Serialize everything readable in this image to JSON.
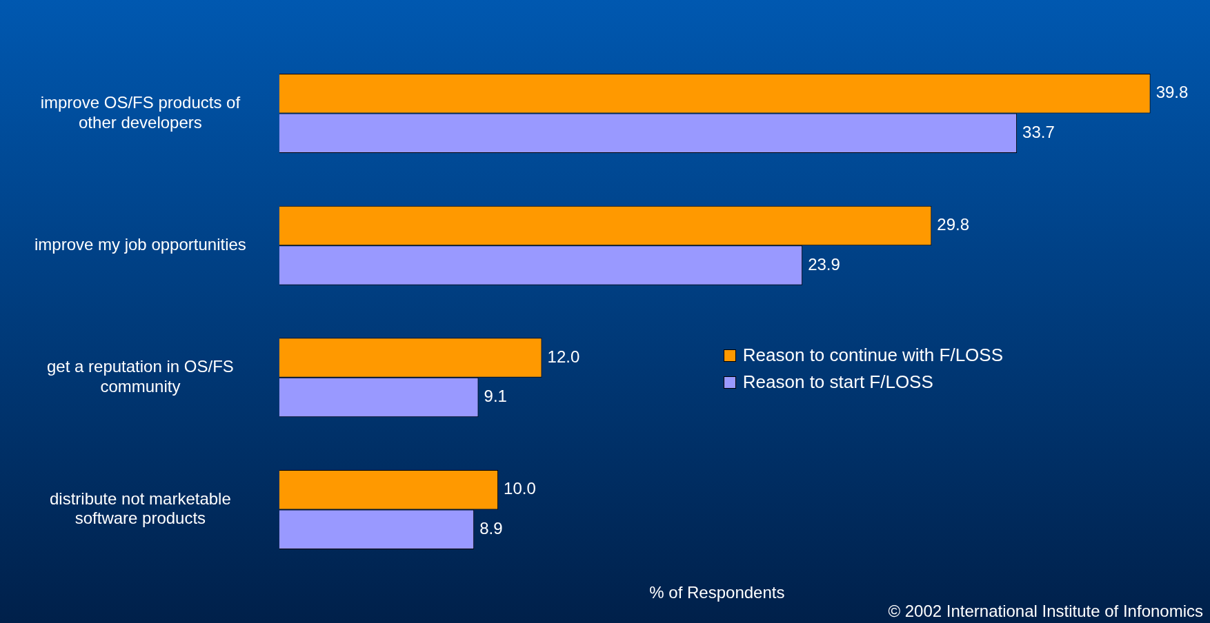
{
  "chart_data": {
    "type": "bar",
    "orientation": "horizontal",
    "categories": [
      "improve OS/FS products of other developers",
      "improve my job opportunities",
      "get a reputation in OS/FS community",
      "distribute not marketable software products"
    ],
    "series": [
      {
        "name": "Reason to continue with F/LOSS",
        "color": "#ff9900",
        "values": [
          39.8,
          29.8,
          12.0,
          10.0
        ],
        "value_labels": [
          "39.8",
          "29.8",
          "12.0",
          "10.0"
        ]
      },
      {
        "name": "Reason to start F/LOSS",
        "color": "#9999ff",
        "values": [
          33.7,
          23.9,
          9.1,
          8.9
        ],
        "value_labels": [
          "33.7",
          "23.9",
          "9.1",
          "8.9"
        ]
      }
    ],
    "xlabel": "% of Respondents",
    "tick_labels": "y",
    "grid": false,
    "legend": "right",
    "annotations": [
      "© 2002 International Institute of Infonomics"
    ]
  }
}
